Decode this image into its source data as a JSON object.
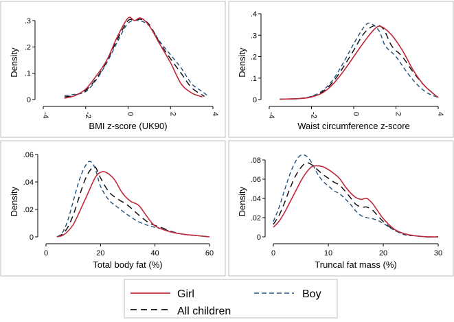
{
  "colors": {
    "girl": "#c0283a",
    "boy": "#1f4e79",
    "all": "#111111",
    "frame": "#bdbdbd",
    "axis": "#000000"
  },
  "legend": {
    "girl": "Girl",
    "boy": "Boy",
    "all": "All children"
  },
  "chart_data": [
    {
      "type": "line",
      "id": "bmi",
      "xlabel": "BMI z-score (UK90)",
      "ylabel": "Density",
      "xlim": [
        -4,
        4
      ],
      "ylim": [
        0,
        0.3
      ],
      "xticks": [
        -4,
        -2,
        0,
        2,
        4
      ],
      "xtick_labels": [
        "-4",
        "-2",
        "0",
        "2",
        "4"
      ],
      "xtick_rotated": true,
      "yticks": [
        0,
        0.1,
        0.2,
        0.3
      ],
      "ytick_labels": [
        "0",
        ".1",
        ".2",
        ".3"
      ],
      "series": [
        {
          "name": "Girl",
          "x": [
            -3,
            -2.5,
            -2,
            -1.5,
            -1,
            -0.5,
            0,
            0.3,
            0.6,
            1,
            1.5,
            2,
            2.5,
            3,
            3.5
          ],
          "y": [
            0.005,
            0.015,
            0.04,
            0.09,
            0.15,
            0.24,
            0.31,
            0.3,
            0.31,
            0.28,
            0.21,
            0.14,
            0.06,
            0.025,
            0.01
          ]
        },
        {
          "name": "Boy",
          "x": [
            -3,
            -2.5,
            -2,
            -1.5,
            -1,
            -0.5,
            0,
            0.5,
            1,
            1.5,
            2,
            2.5,
            3,
            3.5,
            3.8
          ],
          "y": [
            0.015,
            0.02,
            0.03,
            0.075,
            0.14,
            0.22,
            0.29,
            0.3,
            0.28,
            0.22,
            0.17,
            0.12,
            0.06,
            0.03,
            0.012
          ]
        },
        {
          "name": "All children",
          "x": [
            -3,
            -2.5,
            -2,
            -1.5,
            -1,
            -0.5,
            0,
            0.3,
            0.6,
            1,
            1.5,
            2,
            2.5,
            3,
            3.6
          ],
          "y": [
            0.01,
            0.017,
            0.035,
            0.08,
            0.145,
            0.23,
            0.3,
            0.3,
            0.305,
            0.285,
            0.215,
            0.155,
            0.1,
            0.045,
            0.012
          ]
        }
      ]
    },
    {
      "type": "line",
      "id": "waist",
      "xlabel": "Waist circumference z-score",
      "ylabel": "Density",
      "xlim": [
        -4,
        4
      ],
      "ylim": [
        0,
        0.4
      ],
      "xticks": [
        -4,
        -2,
        0,
        2,
        4
      ],
      "xtick_labels": [
        "-4",
        "-2",
        "0",
        "2",
        "4"
      ],
      "xtick_rotated": true,
      "yticks": [
        0,
        0.1,
        0.2,
        0.3,
        0.4
      ],
      "ytick_labels": [
        "0",
        ".1",
        ".2",
        ".3",
        ".4"
      ],
      "series": [
        {
          "name": "Girl",
          "x": [
            -3.5,
            -3,
            -2.5,
            -2,
            -1.5,
            -1,
            -0.5,
            0,
            0.5,
            1,
            1.3,
            1.8,
            2.3,
            2.8,
            3.3,
            3.8,
            4
          ],
          "y": [
            0.002,
            0.003,
            0.005,
            0.012,
            0.03,
            0.07,
            0.13,
            0.2,
            0.27,
            0.33,
            0.34,
            0.3,
            0.23,
            0.14,
            0.07,
            0.025,
            0.01
          ]
        },
        {
          "name": "Boy",
          "x": [
            -3.5,
            -3,
            -2.5,
            -2,
            -1.5,
            -1,
            -0.5,
            0,
            0.5,
            0.8,
            1.2,
            1.5,
            2,
            2.5,
            3,
            3.5,
            4
          ],
          "y": [
            0.002,
            0.003,
            0.006,
            0.015,
            0.04,
            0.09,
            0.17,
            0.26,
            0.34,
            0.355,
            0.32,
            0.25,
            0.2,
            0.13,
            0.07,
            0.03,
            0.01
          ]
        },
        {
          "name": "All children",
          "x": [
            -3.5,
            -3,
            -2.5,
            -2,
            -1.5,
            -1,
            -0.5,
            0,
            0.5,
            1,
            1.4,
            1.8,
            2.3,
            2.8,
            3.3,
            3.8,
            4
          ],
          "y": [
            0.002,
            0.003,
            0.005,
            0.013,
            0.035,
            0.08,
            0.15,
            0.23,
            0.31,
            0.345,
            0.33,
            0.25,
            0.2,
            0.13,
            0.07,
            0.025,
            0.01
          ]
        }
      ]
    },
    {
      "type": "line",
      "id": "bodyfat",
      "xlabel": "Total body fat (%)",
      "ylabel": "Density",
      "xlim": [
        0,
        60
      ],
      "ylim": [
        0,
        0.06
      ],
      "xticks": [
        0,
        20,
        40,
        60
      ],
      "xtick_labels": [
        "0",
        "20",
        "40",
        "60"
      ],
      "xtick_rotated": false,
      "yticks": [
        0,
        0.02,
        0.04,
        0.06
      ],
      "ytick_labels": [
        "0",
        ".02",
        ".04",
        ".06"
      ],
      "series": [
        {
          "name": "Girl",
          "x": [
            4,
            6,
            8,
            10,
            12,
            15,
            18,
            20,
            22,
            25,
            28,
            31,
            34,
            37,
            40,
            45,
            50,
            55,
            60
          ],
          "y": [
            0,
            0.001,
            0.004,
            0.009,
            0.017,
            0.03,
            0.043,
            0.047,
            0.047,
            0.042,
            0.032,
            0.026,
            0.023,
            0.015,
            0.008,
            0.004,
            0.002,
            0.001,
            0
          ]
        },
        {
          "name": "Boy",
          "x": [
            4,
            6,
            8,
            10,
            12,
            14,
            16,
            18,
            20,
            23,
            26,
            30,
            34,
            38,
            42,
            46,
            50,
            55,
            60
          ],
          "y": [
            0,
            0.003,
            0.012,
            0.026,
            0.04,
            0.05,
            0.055,
            0.05,
            0.037,
            0.027,
            0.022,
            0.016,
            0.011,
            0.008,
            0.006,
            0.004,
            0.002,
            0.001,
            0
          ]
        },
        {
          "name": "All children",
          "x": [
            4,
            6,
            8,
            10,
            12,
            14,
            16,
            18,
            20,
            23,
            26,
            30,
            34,
            38,
            42,
            46,
            50,
            55,
            60
          ],
          "y": [
            0,
            0.002,
            0.007,
            0.016,
            0.028,
            0.04,
            0.048,
            0.051,
            0.043,
            0.033,
            0.028,
            0.023,
            0.016,
            0.01,
            0.007,
            0.004,
            0.002,
            0.001,
            0
          ]
        }
      ]
    },
    {
      "type": "line",
      "id": "truncal",
      "xlabel": "Truncal fat mass (%)",
      "ylabel": "Density",
      "xlim": [
        0,
        30
      ],
      "ylim": [
        0,
        0.08
      ],
      "xticks": [
        0,
        10,
        20,
        30
      ],
      "xtick_labels": [
        "0",
        "10",
        "20",
        "30"
      ],
      "xtick_rotated": false,
      "yticks": [
        0,
        0.02,
        0.04,
        0.06,
        0.08
      ],
      "ytick_labels": [
        "0",
        ".02",
        ".04",
        ".06",
        ".08"
      ],
      "series": [
        {
          "name": "Girl",
          "x": [
            0,
            1,
            2,
            3,
            4,
            5,
            6,
            7,
            8,
            9,
            10,
            11,
            12,
            13,
            14,
            15,
            16,
            17,
            18,
            19,
            20,
            22,
            24,
            26,
            28,
            30
          ],
          "y": [
            0.01,
            0.016,
            0.025,
            0.036,
            0.047,
            0.058,
            0.067,
            0.073,
            0.074,
            0.073,
            0.07,
            0.066,
            0.061,
            0.053,
            0.046,
            0.041,
            0.039,
            0.04,
            0.035,
            0.027,
            0.019,
            0.008,
            0.003,
            0.001,
            0,
            0
          ]
        },
        {
          "name": "Boy",
          "x": [
            0,
            1,
            2,
            3,
            4,
            5,
            6,
            7,
            8,
            9,
            10,
            11,
            12,
            13,
            14,
            15,
            16,
            17,
            18,
            19,
            20,
            22,
            24,
            26,
            28,
            30
          ],
          "y": [
            0.016,
            0.03,
            0.048,
            0.065,
            0.078,
            0.085,
            0.084,
            0.077,
            0.066,
            0.058,
            0.053,
            0.048,
            0.045,
            0.04,
            0.034,
            0.027,
            0.022,
            0.02,
            0.019,
            0.017,
            0.014,
            0.007,
            0.002,
            0.001,
            0,
            0
          ]
        },
        {
          "name": "All children",
          "x": [
            0,
            1,
            2,
            3,
            4,
            5,
            6,
            7,
            8,
            9,
            10,
            11,
            12,
            13,
            14,
            15,
            16,
            17,
            18,
            19,
            20,
            22,
            24,
            26,
            28,
            30
          ],
          "y": [
            0.013,
            0.022,
            0.035,
            0.05,
            0.063,
            0.072,
            0.077,
            0.075,
            0.07,
            0.065,
            0.061,
            0.057,
            0.054,
            0.048,
            0.041,
            0.034,
            0.031,
            0.031,
            0.028,
            0.022,
            0.016,
            0.007,
            0.003,
            0.001,
            0,
            0
          ]
        }
      ]
    }
  ]
}
